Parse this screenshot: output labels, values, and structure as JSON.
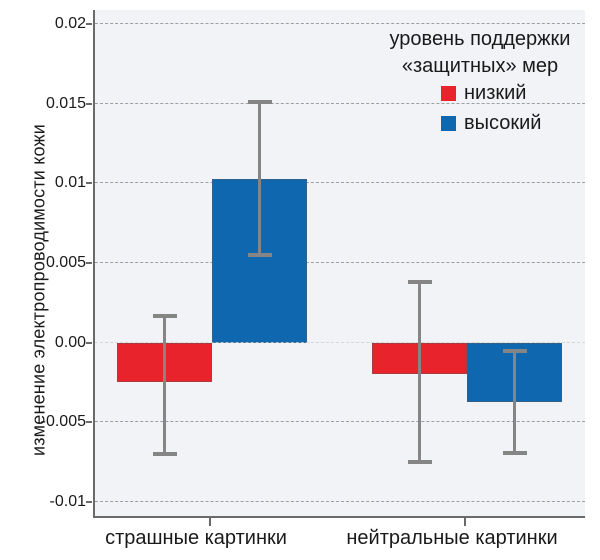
{
  "chart_data": {
    "type": "bar",
    "title": "",
    "ylabel": "изменение электропроводимости кожи",
    "xlabel": "",
    "categories": [
      "страшные картинки",
      "нейтральные картинки"
    ],
    "series": [
      {
        "name": "низкий",
        "color": "#e8232b",
        "values": [
          -0.0025,
          -0.002
        ],
        "error_high": [
          0.0017,
          0.0038
        ],
        "error_low": [
          -0.007,
          -0.0075
        ]
      },
      {
        "name": "высокий",
        "color": "#0f67b0",
        "values": [
          0.0103,
          -0.0037
        ],
        "error_high": [
          0.0151,
          -0.0005
        ],
        "error_low": [
          0.0055,
          -0.0069
        ]
      }
    ],
    "y_ticks": [
      {
        "value": 0.02,
        "label": "0.02"
      },
      {
        "value": 0.015,
        "label": "0.015"
      },
      {
        "value": 0.01,
        "label": "0.01"
      },
      {
        "value": 0.005,
        "label": "0.005"
      },
      {
        "value": 0.0,
        "label": "0.00"
      },
      {
        "value": -0.005,
        "label": "-0.005"
      },
      {
        "value": -0.01,
        "label": "-0.01"
      }
    ],
    "ylim": [
      -0.01101,
      0.02088
    ],
    "grid": "horizontal-dashed",
    "legend_position": "top-right",
    "legend": {
      "title_line1": "уровень поддержки",
      "title_line2": "«защитных» мер"
    },
    "colors": {
      "error_bar": "#858585",
      "axis": "#6a6a6a",
      "gridline": "#9aa0a6",
      "plot_background": "#f1f3f6",
      "page_background": "#ffffff",
      "text": "#1a1a1a"
    }
  }
}
